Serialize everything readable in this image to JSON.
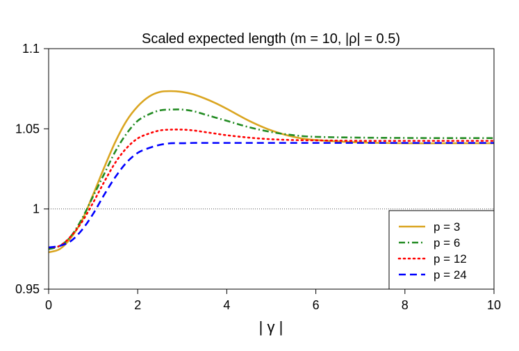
{
  "chart_data": {
    "type": "line",
    "title": "Scaled expected length (m = 10, |ρ| = 0.5)",
    "xlabel": "| γ |",
    "ylabel": "",
    "xlim": [
      0,
      10
    ],
    "ylim": [
      0.95,
      1.1
    ],
    "x_ticks": [
      0,
      2,
      4,
      6,
      8,
      10
    ],
    "x_tick_labels": [
      "0",
      "2",
      "4",
      "6",
      "8",
      "10"
    ],
    "y_ticks": [
      0.95,
      1,
      1.05,
      1.1
    ],
    "y_tick_labels": [
      "0.95",
      "1",
      "1.05",
      "1.1"
    ],
    "reference_line": {
      "y": 1,
      "style": "dotted",
      "color": "#555555"
    },
    "legend_position": "bottom-right",
    "x": [
      0,
      0.25,
      0.5,
      0.75,
      1,
      1.25,
      1.5,
      1.75,
      2,
      2.25,
      2.5,
      2.75,
      3,
      3.25,
      3.5,
      3.75,
      4,
      4.5,
      5,
      5.5,
      6,
      7,
      8,
      9,
      10
    ],
    "series": [
      {
        "name": "p = 3",
        "color": "#DAA520",
        "dash": "solid",
        "values": [
          0.973,
          0.975,
          0.982,
          0.993,
          1.009,
          1.026,
          1.042,
          1.055,
          1.064,
          1.07,
          1.073,
          1.0735,
          1.073,
          1.0715,
          1.069,
          1.066,
          1.0625,
          1.055,
          1.049,
          1.045,
          1.043,
          1.0415,
          1.041,
          1.041,
          1.041
        ]
      },
      {
        "name": "p = 6",
        "color": "#228B22",
        "dash": "dotdash",
        "values": [
          0.975,
          0.977,
          0.983,
          0.994,
          1.008,
          1.022,
          1.036,
          1.047,
          1.055,
          1.059,
          1.0615,
          1.062,
          1.062,
          1.061,
          1.059,
          1.057,
          1.055,
          1.051,
          1.048,
          1.046,
          1.045,
          1.0445,
          1.0443,
          1.0442,
          1.0442
        ]
      },
      {
        "name": "p = 12",
        "color": "#FF0000",
        "dash": "dotted",
        "values": [
          0.976,
          0.977,
          0.983,
          0.992,
          1.004,
          1.017,
          1.029,
          1.038,
          1.044,
          1.047,
          1.049,
          1.0495,
          1.0495,
          1.049,
          1.048,
          1.047,
          1.046,
          1.0445,
          1.0435,
          1.043,
          1.0428,
          1.0425,
          1.0425,
          1.0425,
          1.0425
        ]
      },
      {
        "name": "p = 24",
        "color": "#0000FF",
        "dash": "dashed",
        "values": [
          0.976,
          0.977,
          0.98,
          0.987,
          0.997,
          1.009,
          1.02,
          1.029,
          1.035,
          1.038,
          1.04,
          1.041,
          1.041,
          1.0412,
          1.0412,
          1.0412,
          1.0412,
          1.0412,
          1.0412,
          1.0412,
          1.0412,
          1.0412,
          1.0412,
          1.0412,
          1.0412
        ]
      }
    ]
  }
}
